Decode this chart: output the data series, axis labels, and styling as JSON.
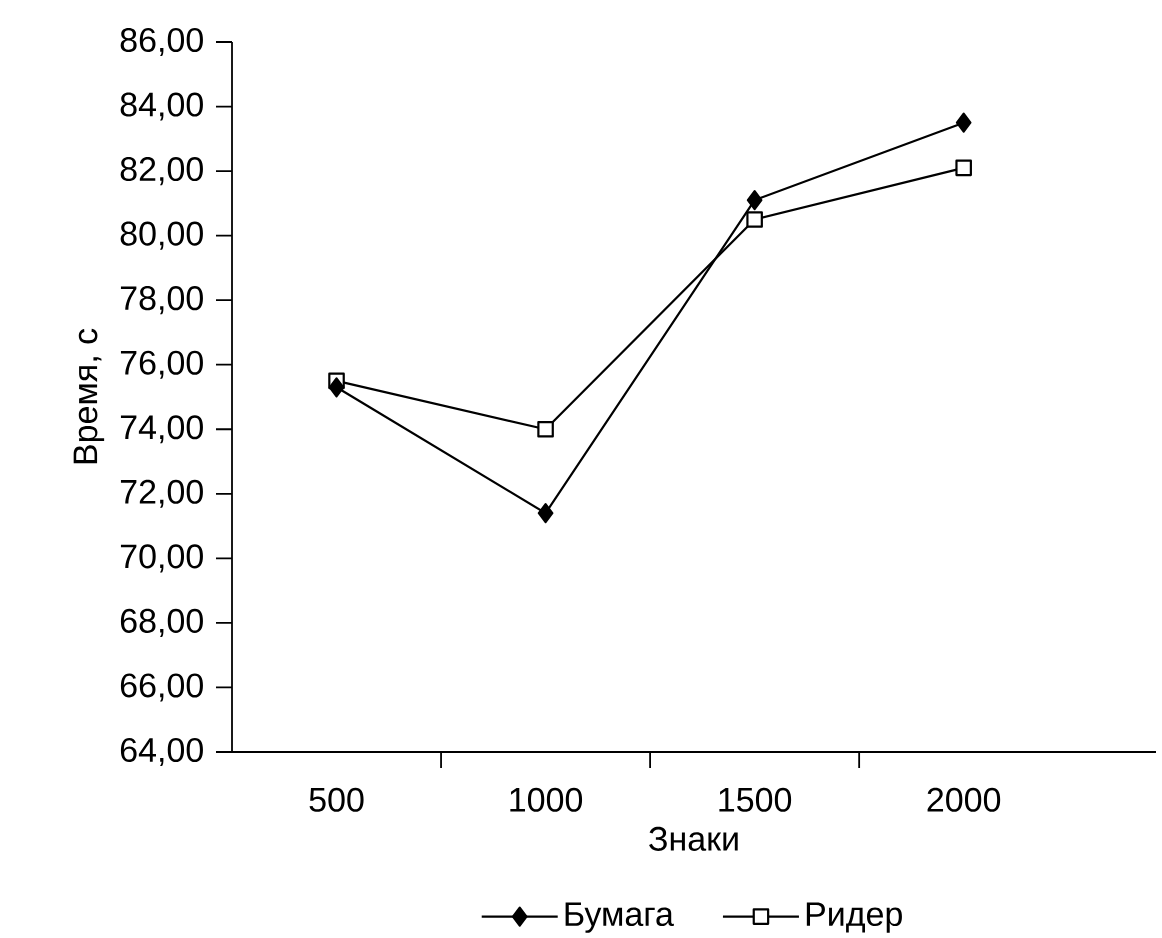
{
  "chart_data": {
    "type": "line",
    "xlabel": "Знаки",
    "ylabel": "Время, с",
    "categories": [
      "500",
      "1000",
      "1500",
      "2000"
    ],
    "series": [
      {
        "name": "Бумага",
        "color": "#000000",
        "marker": "diamond",
        "values": [
          75.3,
          71.4,
          81.1,
          83.5
        ]
      },
      {
        "name": "Ридер",
        "color": "#000000",
        "marker": "square",
        "values": [
          75.5,
          74.0,
          80.5,
          82.1
        ]
      }
    ],
    "ylim": [
      64,
      86
    ],
    "yticks": [
      {
        "value": 64,
        "label": "64,00"
      },
      {
        "value": 66,
        "label": "66,00"
      },
      {
        "value": 68,
        "label": "68,00"
      },
      {
        "value": 70,
        "label": "70,00"
      },
      {
        "value": 72,
        "label": "72,00"
      },
      {
        "value": 74,
        "label": "74,00"
      },
      {
        "value": 76,
        "label": "76,00"
      },
      {
        "value": 78,
        "label": "78,00"
      },
      {
        "value": 80,
        "label": "80,00"
      },
      {
        "value": 82,
        "label": "82,00"
      },
      {
        "value": 84,
        "label": "84,00"
      },
      {
        "value": 86,
        "label": "86,00"
      }
    ],
    "grid": false,
    "legend": "bottom",
    "line_style": "solid"
  }
}
